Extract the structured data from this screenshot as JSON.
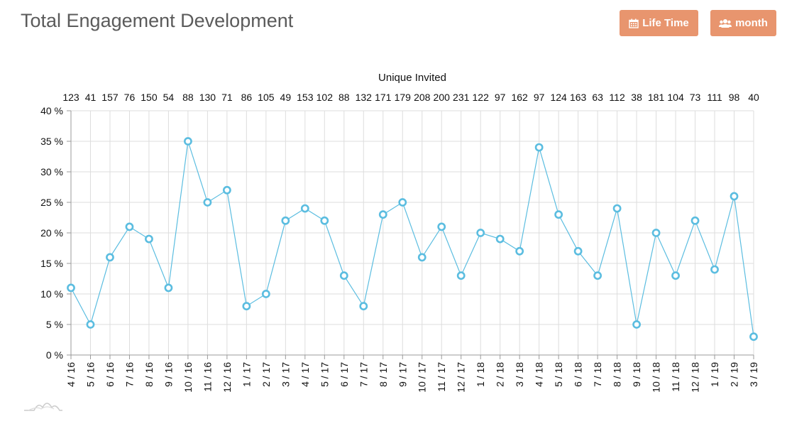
{
  "header": {
    "title": "Total Engagement Development"
  },
  "toolbar": {
    "lifetime_label": "Life Time",
    "lifetime_icon": "calendar-icon",
    "month_label": "month",
    "month_icon": "users-icon",
    "button_color": "#e8956e"
  },
  "colors": {
    "series": "#5bbde0",
    "grid": "#dddddd",
    "axis": "#999999"
  },
  "chart_data": {
    "type": "line",
    "title": "",
    "top_axis_title": "Unique Invited",
    "categories": [
      "4 / 16",
      "5 / 16",
      "6 / 16",
      "7 / 16",
      "8 / 16",
      "9 / 16",
      "10 / 16",
      "11 / 16",
      "12 / 16",
      "1 / 17",
      "2 / 17",
      "3 / 17",
      "4 / 17",
      "5 / 17",
      "6 / 17",
      "7 / 17",
      "8 / 17",
      "9 / 17",
      "10 / 17",
      "11 / 17",
      "12 / 17",
      "1 / 18",
      "2 / 18",
      "3 / 18",
      "4 / 18",
      "5 / 18",
      "6 / 18",
      "7 / 18",
      "8 / 18",
      "9 / 18",
      "10 / 18",
      "11 / 18",
      "12 / 18",
      "1 / 19",
      "2 / 19",
      "3 / 19"
    ],
    "top_categories": [
      "123",
      "41",
      "157",
      "76",
      "150",
      "54",
      "88",
      "130",
      "71",
      "86",
      "105",
      "49",
      "153",
      "102",
      "88",
      "132",
      "171",
      "179",
      "208",
      "200",
      "231",
      "122",
      "97",
      "162",
      "97",
      "124",
      "163",
      "63",
      "112",
      "38",
      "181",
      "104",
      "73",
      "111",
      "98",
      "40"
    ],
    "values": [
      11,
      5,
      16,
      21,
      19,
      11,
      35,
      25,
      27,
      8,
      10,
      22,
      24,
      22,
      13,
      8,
      23,
      25,
      16,
      21,
      13,
      20,
      19,
      17,
      34,
      23,
      17,
      13,
      24,
      5,
      20,
      13,
      22,
      14,
      26,
      3
    ],
    "ylim": [
      0,
      40
    ],
    "yticks": [
      0,
      5,
      10,
      15,
      20,
      25,
      30,
      35,
      40
    ],
    "ytick_labels": [
      "0 %",
      "5 %",
      "10 %",
      "15 %",
      "20 %",
      "25 %",
      "30 %",
      "35 %",
      "40 %"
    ],
    "xlabel": "",
    "ylabel": "",
    "grid": true,
    "legend": "none"
  }
}
